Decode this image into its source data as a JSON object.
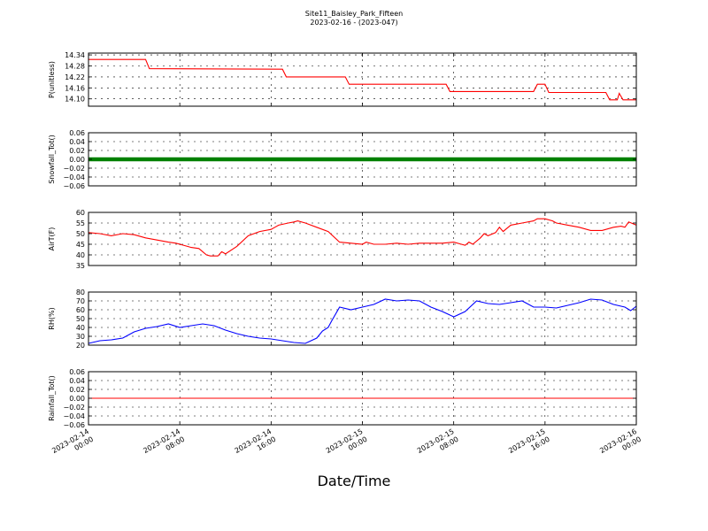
{
  "title": "Site11_Baisley_Park_Fifteen",
  "subtitle": "2023-02-16 - (2023-047)",
  "xlabel": "Date/Time",
  "x_ticks": [
    {
      "line1": "2023-02-14",
      "line2": "00:00"
    },
    {
      "line1": "2023-02-14",
      "line2": "08:00"
    },
    {
      "line1": "2023-02-14",
      "line2": "16:00"
    },
    {
      "line1": "2023-02-15",
      "line2": "00:00"
    },
    {
      "line1": "2023-02-15",
      "line2": "08:00"
    },
    {
      "line1": "2023-02-15",
      "line2": "16:00"
    },
    {
      "line1": "2023-02-16",
      "line2": "00:00"
    }
  ],
  "chart_data": [
    {
      "type": "line",
      "ylabel": "P(unitless)",
      "ylim": [
        14.06,
        14.35
      ],
      "yticks": [
        "14.34",
        "14.28",
        "14.22",
        "14.16",
        "14.10"
      ],
      "ytick_values": [
        14.34,
        14.28,
        14.22,
        14.16,
        14.1
      ],
      "grid": true,
      "series": [
        {
          "color": "#ff0000",
          "style": "step",
          "x": [
            "2023-02-14 00:00",
            "2023-02-14 05:00",
            "2023-02-14 05:20",
            "2023-02-14 17:00",
            "2023-02-14 17:20",
            "2023-02-14 22:30",
            "2023-02-14 22:50",
            "2023-02-15 07:20",
            "2023-02-15 07:40",
            "2023-02-15 15:00",
            "2023-02-15 15:20",
            "2023-02-15 16:00",
            "2023-02-15 16:20",
            "2023-02-15 21:20",
            "2023-02-15 21:40",
            "2023-02-15 22:20",
            "2023-02-15 22:30",
            "2023-02-15 22:50",
            "2023-02-16 00:00"
          ],
          "y": [
            14.315,
            14.315,
            14.265,
            14.262,
            14.22,
            14.22,
            14.18,
            14.18,
            14.14,
            14.14,
            14.18,
            14.18,
            14.135,
            14.135,
            14.095,
            14.095,
            14.13,
            14.095,
            14.095
          ]
        }
      ]
    },
    {
      "type": "scatter",
      "ylabel": "Snowfall_Tot()",
      "ylim": [
        -0.06,
        0.06
      ],
      "yticks": [
        "0.06",
        "0.04",
        "0.02",
        "0.00",
        "−0.02",
        "−0.04",
        "−0.06"
      ],
      "ytick_values": [
        0.06,
        0.04,
        0.02,
        0.0,
        -0.02,
        -0.04,
        -0.06
      ],
      "grid": true,
      "series": [
        {
          "color": "#008000",
          "style": "dense-markers",
          "x": [
            "2023-02-14 00:00",
            "2023-02-16 00:00"
          ],
          "y": [
            0.0,
            0.0
          ]
        }
      ]
    },
    {
      "type": "line",
      "ylabel": "AirT(F)",
      "ylim": [
        35,
        60
      ],
      "yticks": [
        "60",
        "55",
        "50",
        "45",
        "40",
        "35"
      ],
      "ytick_values": [
        60,
        55,
        50,
        45,
        40,
        35
      ],
      "grid": true,
      "series": [
        {
          "color": "#ff0000",
          "style": "line",
          "x": [
            "2023-02-14 00:00",
            "2023-02-14 01:00",
            "2023-02-14 02:00",
            "2023-02-14 03:00",
            "2023-02-14 04:00",
            "2023-02-14 05:00",
            "2023-02-14 06:00",
            "2023-02-14 07:00",
            "2023-02-14 07:40",
            "2023-02-14 08:00",
            "2023-02-14 08:40",
            "2023-02-14 09:00",
            "2023-02-14 09:40",
            "2023-02-14 10:20",
            "2023-02-14 10:40",
            "2023-02-14 11:20",
            "2023-02-14 11:40",
            "2023-02-14 12:00",
            "2023-02-14 13:00",
            "2023-02-14 14:00",
            "2023-02-14 15:00",
            "2023-02-14 16:00",
            "2023-02-14 16:20",
            "2023-02-14 16:40",
            "2023-02-14 17:30",
            "2023-02-14 18:00",
            "2023-02-14 18:20",
            "2023-02-14 19:00",
            "2023-02-14 20:00",
            "2023-02-14 21:00",
            "2023-02-14 22:00",
            "2023-02-14 23:00",
            "2023-02-15 00:00",
            "2023-02-15 00:20",
            "2023-02-15 01:00",
            "2023-02-15 02:00",
            "2023-02-15 03:00",
            "2023-02-15 04:00",
            "2023-02-15 05:00",
            "2023-02-15 06:00",
            "2023-02-15 07:00",
            "2023-02-15 08:00",
            "2023-02-15 08:40",
            "2023-02-15 09:00",
            "2023-02-15 09:20",
            "2023-02-15 09:40",
            "2023-02-15 10:20",
            "2023-02-15 10:40",
            "2023-02-15 11:00",
            "2023-02-15 11:40",
            "2023-02-15 12:00",
            "2023-02-15 12:20",
            "2023-02-15 13:00",
            "2023-02-15 14:00",
            "2023-02-15 15:00",
            "2023-02-15 15:20",
            "2023-02-15 16:00",
            "2023-02-15 16:40",
            "2023-02-15 17:00",
            "2023-02-15 18:00",
            "2023-02-15 19:00",
            "2023-02-15 20:00",
            "2023-02-15 21:00",
            "2023-02-15 22:00",
            "2023-02-15 22:40",
            "2023-02-15 23:00",
            "2023-02-15 23:20",
            "2023-02-16 00:00"
          ],
          "y": [
            50.5,
            50.0,
            49.0,
            50.0,
            49.5,
            48.0,
            47.0,
            46.0,
            45.5,
            45.0,
            44.0,
            43.5,
            43.0,
            40.0,
            39.5,
            39.5,
            41.5,
            40.5,
            44.0,
            49.0,
            51.0,
            52.0,
            53.0,
            54.0,
            55.0,
            55.5,
            56.0,
            55.0,
            53.0,
            51.0,
            46.0,
            45.5,
            45.0,
            46.0,
            45.0,
            45.0,
            45.5,
            45.0,
            45.5,
            45.5,
            45.5,
            46.0,
            45.0,
            44.5,
            46.0,
            45.0,
            48.0,
            50.0,
            49.0,
            50.5,
            53.0,
            51.0,
            54.0,
            55.0,
            56.0,
            57.0,
            57.0,
            56.0,
            55.0,
            54.0,
            53.0,
            51.5,
            51.5,
            53.0,
            53.5,
            53.0,
            55.5,
            54.0
          ]
        }
      ]
    },
    {
      "type": "line",
      "ylabel": "RH(%)",
      "ylim": [
        20,
        80
      ],
      "yticks": [
        "80",
        "70",
        "60",
        "50",
        "40",
        "30",
        "20"
      ],
      "ytick_values": [
        80,
        70,
        60,
        50,
        40,
        30,
        20
      ],
      "grid": true,
      "series": [
        {
          "color": "#0000ff",
          "style": "line",
          "x": [
            "2023-02-14 00:00",
            "2023-02-14 01:00",
            "2023-02-14 02:00",
            "2023-02-14 03:00",
            "2023-02-14 04:00",
            "2023-02-14 05:00",
            "2023-02-14 06:00",
            "2023-02-14 07:00",
            "2023-02-14 08:00",
            "2023-02-14 09:00",
            "2023-02-14 10:00",
            "2023-02-14 11:00",
            "2023-02-14 12:00",
            "2023-02-14 13:00",
            "2023-02-14 14:00",
            "2023-02-14 15:00",
            "2023-02-14 16:00",
            "2023-02-14 17:00",
            "2023-02-14 18:00",
            "2023-02-14 19:00",
            "2023-02-14 20:00",
            "2023-02-14 20:30",
            "2023-02-14 21:00",
            "2023-02-14 21:20",
            "2023-02-14 22:00",
            "2023-02-14 23:00",
            "2023-02-15 00:00",
            "2023-02-15 01:00",
            "2023-02-15 02:00",
            "2023-02-15 03:00",
            "2023-02-15 04:00",
            "2023-02-15 05:00",
            "2023-02-15 06:00",
            "2023-02-15 07:00",
            "2023-02-15 08:00",
            "2023-02-15 09:00",
            "2023-02-15 10:00",
            "2023-02-15 11:00",
            "2023-02-15 12:00",
            "2023-02-15 13:00",
            "2023-02-15 14:00",
            "2023-02-15 15:00",
            "2023-02-15 16:00",
            "2023-02-15 17:00",
            "2023-02-15 18:00",
            "2023-02-15 19:00",
            "2023-02-15 20:00",
            "2023-02-15 21:00",
            "2023-02-15 22:00",
            "2023-02-15 23:00",
            "2023-02-15 23:30",
            "2023-02-16 00:00"
          ],
          "y": [
            22,
            25,
            26,
            28,
            35,
            39,
            41,
            44,
            40,
            42,
            44,
            42,
            37,
            33,
            30,
            28,
            27,
            25,
            23,
            22,
            28,
            36,
            40,
            48,
            63,
            60,
            63,
            66,
            72,
            70,
            71,
            70,
            63,
            58,
            52,
            58,
            70,
            67,
            66,
            68,
            70,
            63,
            63,
            62,
            65,
            68,
            72,
            71,
            66,
            63,
            59,
            64
          ]
        }
      ]
    },
    {
      "type": "line",
      "ylabel": "Rainfall_Tot()",
      "ylim": [
        -0.06,
        0.06
      ],
      "yticks": [
        "0.06",
        "0.04",
        "0.02",
        "0.00",
        "−0.02",
        "−0.04",
        "−0.06"
      ],
      "ytick_values": [
        0.06,
        0.04,
        0.02,
        0.0,
        -0.02,
        -0.04,
        -0.06
      ],
      "grid": true,
      "series": [
        {
          "color": "#ff0000",
          "style": "line",
          "x": [
            "2023-02-14 00:00",
            "2023-02-16 00:00"
          ],
          "y": [
            0.0,
            0.0
          ]
        }
      ]
    }
  ]
}
